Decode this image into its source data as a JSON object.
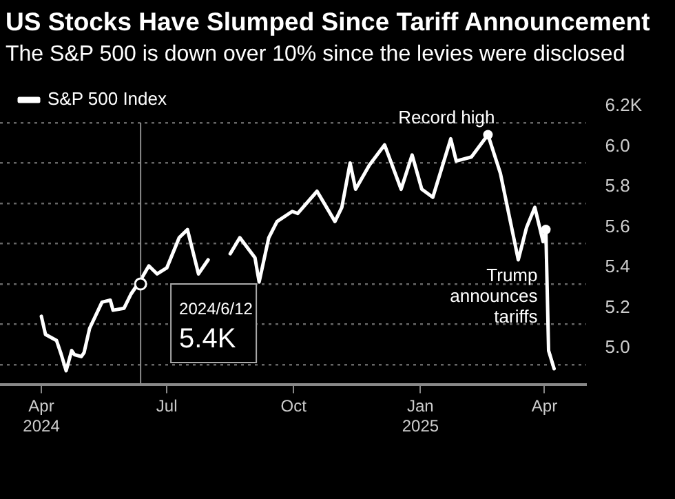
{
  "chart_data": {
    "type": "line",
    "title": "US Stocks Have Slumped Since Tariff Announcement",
    "subtitle": "The S&P 500 is down over 10% since the levies were disclosed",
    "x": [
      "2024-04-01",
      "2024-04-04",
      "2024-04-12",
      "2024-04-15",
      "2024-04-19",
      "2024-04-23",
      "2024-04-25",
      "2024-04-30",
      "2024-05-02",
      "2024-05-06",
      "2024-05-15",
      "2024-05-21",
      "2024-05-23",
      "2024-05-31",
      "2024-06-05",
      "2024-06-12",
      "2024-06-18",
      "2024-06-24",
      "2024-07-01",
      "2024-07-10",
      "2024-07-16",
      "2024-07-24",
      "2024-07-31",
      "2024-08-05",
      "2024-08-09",
      "2024-08-16",
      "2024-08-23",
      "2024-09-03",
      "2024-09-06",
      "2024-09-13",
      "2024-09-19",
      "2024-09-30",
      "2024-10-04",
      "2024-10-18",
      "2024-10-31",
      "2024-11-05",
      "2024-11-11",
      "2024-11-15",
      "2024-11-25",
      "2024-12-06",
      "2024-12-18",
      "2024-12-26",
      "2025-01-02",
      "2025-01-10",
      "2025-01-23",
      "2025-01-27",
      "2025-02-07",
      "2025-02-19",
      "2025-02-28",
      "2025-03-10",
      "2025-03-13",
      "2025-03-19",
      "2025-03-25",
      "2025-03-31",
      "2025-04-02",
      "2025-04-04",
      "2025-04-08"
    ],
    "series": [
      {
        "name": "S&P 500 Index",
        "color": "#ffffff",
        "values": [
          5.24,
          5.15,
          5.12,
          5.06,
          4.97,
          5.07,
          5.05,
          5.04,
          5.06,
          5.18,
          5.31,
          5.32,
          5.27,
          5.28,
          5.35,
          5.42,
          5.49,
          5.45,
          5.48,
          5.63,
          5.67,
          5.45,
          5.52,
          null,
          null,
          5.55,
          5.63,
          5.53,
          5.41,
          5.63,
          5.71,
          5.76,
          5.75,
          5.86,
          5.71,
          5.78,
          6.0,
          5.87,
          5.99,
          6.09,
          5.87,
          6.04,
          5.87,
          5.83,
          6.12,
          6.01,
          6.03,
          6.14,
          5.95,
          5.62,
          5.52,
          5.68,
          5.78,
          5.61,
          5.67,
          5.07,
          4.98
        ]
      }
    ],
    "xlim": [
      "2024-03-02",
      "2025-05-01"
    ],
    "xticks": [
      {
        "value": "2024-04-01",
        "label": "Apr 2024"
      },
      {
        "value": "2024-07-01",
        "label": "Jul"
      },
      {
        "value": "2024-10-01",
        "label": "Oct"
      },
      {
        "value": "2025-01-01",
        "label": "Jan 2025"
      },
      {
        "value": "2025-04-01",
        "label": "Apr"
      }
    ],
    "ylim": [
      4.9,
      6.2
    ],
    "yticks": [
      {
        "value": 5.0,
        "label": "5.0"
      },
      {
        "value": 5.2,
        "label": "5.2"
      },
      {
        "value": 5.4,
        "label": "5.4"
      },
      {
        "value": 5.6,
        "label": "5.6"
      },
      {
        "value": 5.8,
        "label": "5.8"
      },
      {
        "value": 6.0,
        "label": "6.0"
      },
      {
        "value": 6.2,
        "label": "6.2K"
      }
    ],
    "ref_lines": [
      {
        "axis": "x",
        "value": "2024-06-12",
        "color": "#8c8c8c"
      }
    ],
    "annotations": [
      {
        "text": "2024/6/12",
        "x": "2024-06-12",
        "y": 5.4
      },
      {
        "text": "5.4K",
        "x": "2024-06-12",
        "y": 5.4
      },
      {
        "text": "Record high",
        "x": "2025-02-19",
        "y": 6.14
      },
      {
        "text": "Trump announces tariffs",
        "x": "2025-04-02",
        "y": 5.67
      }
    ],
    "grid": "y",
    "legend": "top left",
    "marker": "none",
    "line_style": "solid"
  }
}
